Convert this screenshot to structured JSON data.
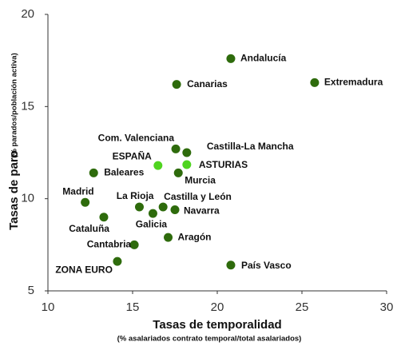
{
  "chart_data": {
    "type": "scatter",
    "xlabel": "Tasas de temporalidad",
    "xlabel_sub": "(% asalariados contrato temporal/total asalariados)",
    "ylabel": "Tasas de paro",
    "ylabel_sub": "(% parados/población activa)",
    "labels": [
      "Andalucía",
      "Extremadura",
      "Canarias",
      "Com. Valenciana",
      "Castilla-La Mancha",
      "ESPAÑA",
      "ASTURIAS",
      "Baleares",
      "Murcia",
      "Madrid",
      "La Rioja",
      "Castilla y León",
      "Navarra",
      "Galicia",
      "Cataluña",
      "Aragón",
      "Cantabria",
      "ZONA EURO",
      "País Vasco"
    ],
    "x": [
      20.8,
      25.75,
      17.6,
      17.55,
      18.2,
      16.5,
      18.2,
      12.7,
      17.7,
      12.2,
      15.4,
      16.8,
      17.5,
      16.2,
      13.3,
      17.1,
      15.1,
      14.1,
      20.8
    ],
    "values": [
      17.6,
      16.3,
      16.2,
      12.7,
      12.5,
      11.8,
      11.85,
      11.4,
      11.4,
      9.8,
      9.55,
      9.55,
      9.4,
      9.2,
      9.0,
      7.9,
      7.5,
      6.6,
      6.4
    ],
    "colors": [
      "#2e6b0c",
      "#2e6b0c",
      "#2e6b0c",
      "#2e6b0c",
      "#2e6b0c",
      "#4fd41f",
      "#4fd41f",
      "#2e6b0c",
      "#2e6b0c",
      "#2e6b0c",
      "#2e6b0c",
      "#2e6b0c",
      "#2e6b0c",
      "#2e6b0c",
      "#2e6b0c",
      "#2e6b0c",
      "#2e6b0c",
      "#2e6b0c",
      "#2e6b0c"
    ],
    "xlim": [
      10,
      30
    ],
    "xticks": [
      10,
      15,
      20,
      25,
      30
    ],
    "ylim": [
      5,
      20
    ],
    "yticks": [
      5,
      10,
      15,
      20
    ]
  }
}
